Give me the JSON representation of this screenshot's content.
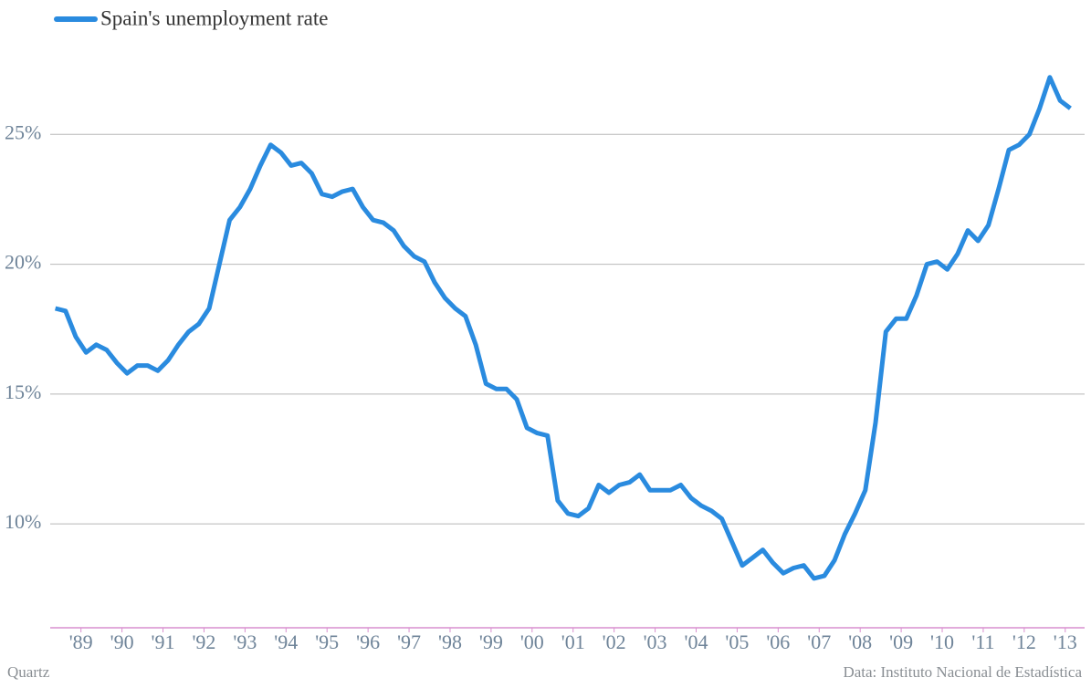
{
  "chart_data": {
    "type": "line",
    "source": "Quartz",
    "note": "Data: Instituto Nacional de Estadística",
    "x": [
      1988.375,
      1988.625,
      1988.875,
      1989.125,
      1989.375,
      1989.625,
      1989.875,
      1990.125,
      1990.375,
      1990.625,
      1990.875,
      1991.125,
      1991.375,
      1991.625,
      1991.875,
      1992.125,
      1992.375,
      1992.625,
      1992.875,
      1993.125,
      1993.375,
      1993.625,
      1993.875,
      1994.125,
      1994.375,
      1994.625,
      1994.875,
      1995.125,
      1995.375,
      1995.625,
      1995.875,
      1996.125,
      1996.375,
      1996.625,
      1996.875,
      1997.125,
      1997.375,
      1997.625,
      1997.875,
      1998.125,
      1998.375,
      1998.625,
      1998.875,
      1999.125,
      1999.375,
      1999.625,
      1999.875,
      2000.125,
      2000.375,
      2000.625,
      2000.875,
      2001.125,
      2001.375,
      2001.625,
      2001.875,
      2002.125,
      2002.375,
      2002.625,
      2002.875,
      2003.125,
      2003.375,
      2003.625,
      2003.875,
      2004.125,
      2004.375,
      2004.625,
      2004.875,
      2005.125,
      2005.375,
      2005.625,
      2005.875,
      2006.125,
      2006.375,
      2006.625,
      2006.875,
      2007.125,
      2007.375,
      2007.625,
      2007.875,
      2008.125,
      2008.375,
      2008.625,
      2008.875,
      2009.125,
      2009.375,
      2009.625,
      2009.875,
      2010.125,
      2010.375,
      2010.625,
      2010.875,
      2011.125,
      2011.375,
      2011.625,
      2011.875,
      2012.125,
      2012.375,
      2012.625,
      2012.875,
      2013.125
    ],
    "series": [
      {
        "name": "Spain's unemployment rate",
        "color": "#2a8bdf",
        "values": [
          18.3,
          18.2,
          17.2,
          16.6,
          16.9,
          16.7,
          16.2,
          15.8,
          16.1,
          16.1,
          15.9,
          16.3,
          16.9,
          17.4,
          17.7,
          18.3,
          20.0,
          21.7,
          22.2,
          22.9,
          23.8,
          24.6,
          24.3,
          23.8,
          23.9,
          23.5,
          22.7,
          22.6,
          22.8,
          22.9,
          22.2,
          21.7,
          21.6,
          21.3,
          20.7,
          20.3,
          20.1,
          19.3,
          18.7,
          18.3,
          18.0,
          16.9,
          15.4,
          15.2,
          15.2,
          14.8,
          13.7,
          13.5,
          13.4,
          10.9,
          10.4,
          10.3,
          10.6,
          11.5,
          11.2,
          11.5,
          11.6,
          11.9,
          11.3,
          11.3,
          11.3,
          11.5,
          11.0,
          10.7,
          10.5,
          10.2,
          9.3,
          8.4,
          8.7,
          9.0,
          8.5,
          8.1,
          8.3,
          8.4,
          7.9,
          8.0,
          8.6,
          9.6,
          10.4,
          11.3,
          13.9,
          17.4,
          17.9,
          17.9,
          18.8,
          20.0,
          20.1,
          19.8,
          20.4,
          21.3,
          20.9,
          21.5,
          22.9,
          24.4,
          24.6,
          25.0,
          26.0,
          27.2,
          26.3,
          26.0
        ]
      }
    ],
    "xlim": [
      1988.25,
      2013.45
    ],
    "xticks": [
      {
        "value": 1989,
        "label": "'89"
      },
      {
        "value": 1990,
        "label": "'90"
      },
      {
        "value": 1991,
        "label": "'91"
      },
      {
        "value": 1992,
        "label": "'92"
      },
      {
        "value": 1993,
        "label": "'93"
      },
      {
        "value": 1994,
        "label": "'94"
      },
      {
        "value": 1995,
        "label": "'95"
      },
      {
        "value": 1996,
        "label": "'96"
      },
      {
        "value": 1997,
        "label": "'97"
      },
      {
        "value": 1998,
        "label": "'98"
      },
      {
        "value": 1999,
        "label": "'99"
      },
      {
        "value": 2000,
        "label": "'00"
      },
      {
        "value": 2001,
        "label": "'01"
      },
      {
        "value": 2002,
        "label": "'02"
      },
      {
        "value": 2003,
        "label": "'03"
      },
      {
        "value": 2004,
        "label": "'04"
      },
      {
        "value": 2005,
        "label": "'05"
      },
      {
        "value": 2006,
        "label": "'06"
      },
      {
        "value": 2007,
        "label": "'07"
      },
      {
        "value": 2008,
        "label": "'08"
      },
      {
        "value": 2009,
        "label": "'09"
      },
      {
        "value": 2010,
        "label": "'10"
      },
      {
        "value": 2011,
        "label": "'11"
      },
      {
        "value": 2012,
        "label": "'12"
      },
      {
        "value": 2013,
        "label": "'13"
      }
    ],
    "ylim": [
      6,
      30
    ],
    "yticks": [
      {
        "value": 10,
        "label": "10%"
      },
      {
        "value": 15,
        "label": "15%"
      },
      {
        "value": 20,
        "label": "20%"
      },
      {
        "value": 25,
        "label": "25%"
      }
    ],
    "grid": true
  }
}
